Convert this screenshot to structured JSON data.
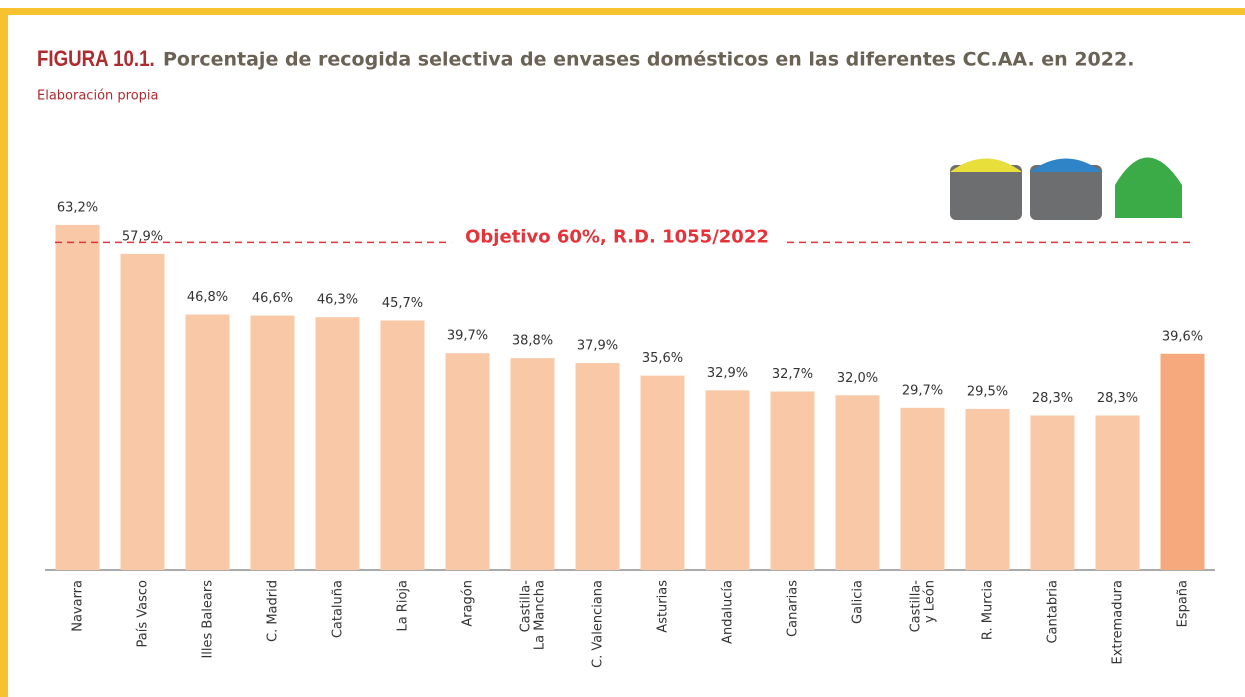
{
  "chart_data": {
    "type": "bar",
    "figure_label": "FIGURA 10.1.",
    "title": "Porcentaje de recogida selectiva de envases domésticos en las diferentes CC.AA. en 2022.",
    "subtitle": "Elaboración propia",
    "categories": [
      "Navarra",
      "País Vasco",
      "Illes Balears",
      "C. Madrid",
      "Cataluña",
      "La Rioja",
      "Aragón",
      "Castilla-\nLa Mancha",
      "C. Valenciana",
      "Asturias",
      "Andalucía",
      "Canarias",
      "Galicia",
      "Castilla-\ny León",
      "R. Murcia",
      "Cantabria",
      "Extremadura",
      "España"
    ],
    "values": [
      63.2,
      57.9,
      46.8,
      46.6,
      46.3,
      45.7,
      39.7,
      38.8,
      37.9,
      35.6,
      32.9,
      32.7,
      32.0,
      29.7,
      29.5,
      28.3,
      28.3,
      39.6
    ],
    "value_labels": [
      "63,2%",
      "57,9%",
      "46,8%",
      "46,6%",
      "46,3%",
      "45,7%",
      "39,7%",
      "38,8%",
      "37,9%",
      "35,6%",
      "32,9%",
      "32,7%",
      "32,0%",
      "29,7%",
      "29,5%",
      "28,3%",
      "28,3%",
      "39,6%"
    ],
    "colors": [
      "#f9c8a6",
      "#f9c8a6",
      "#f9c8a6",
      "#f9c8a6",
      "#f9c8a6",
      "#f9c8a6",
      "#f9c8a6",
      "#f9c8a6",
      "#f9c8a6",
      "#f9c8a6",
      "#f9c8a6",
      "#f9c8a6",
      "#f9c8a6",
      "#f9c8a6",
      "#f9c8a6",
      "#f9c8a6",
      "#f9c8a6",
      "#f5a97c"
    ],
    "ylim": [
      0,
      100
    ],
    "target": {
      "value": 60,
      "label": "Objetivo 60%, R.D. 1055/2022",
      "color": "#e5333a"
    }
  }
}
